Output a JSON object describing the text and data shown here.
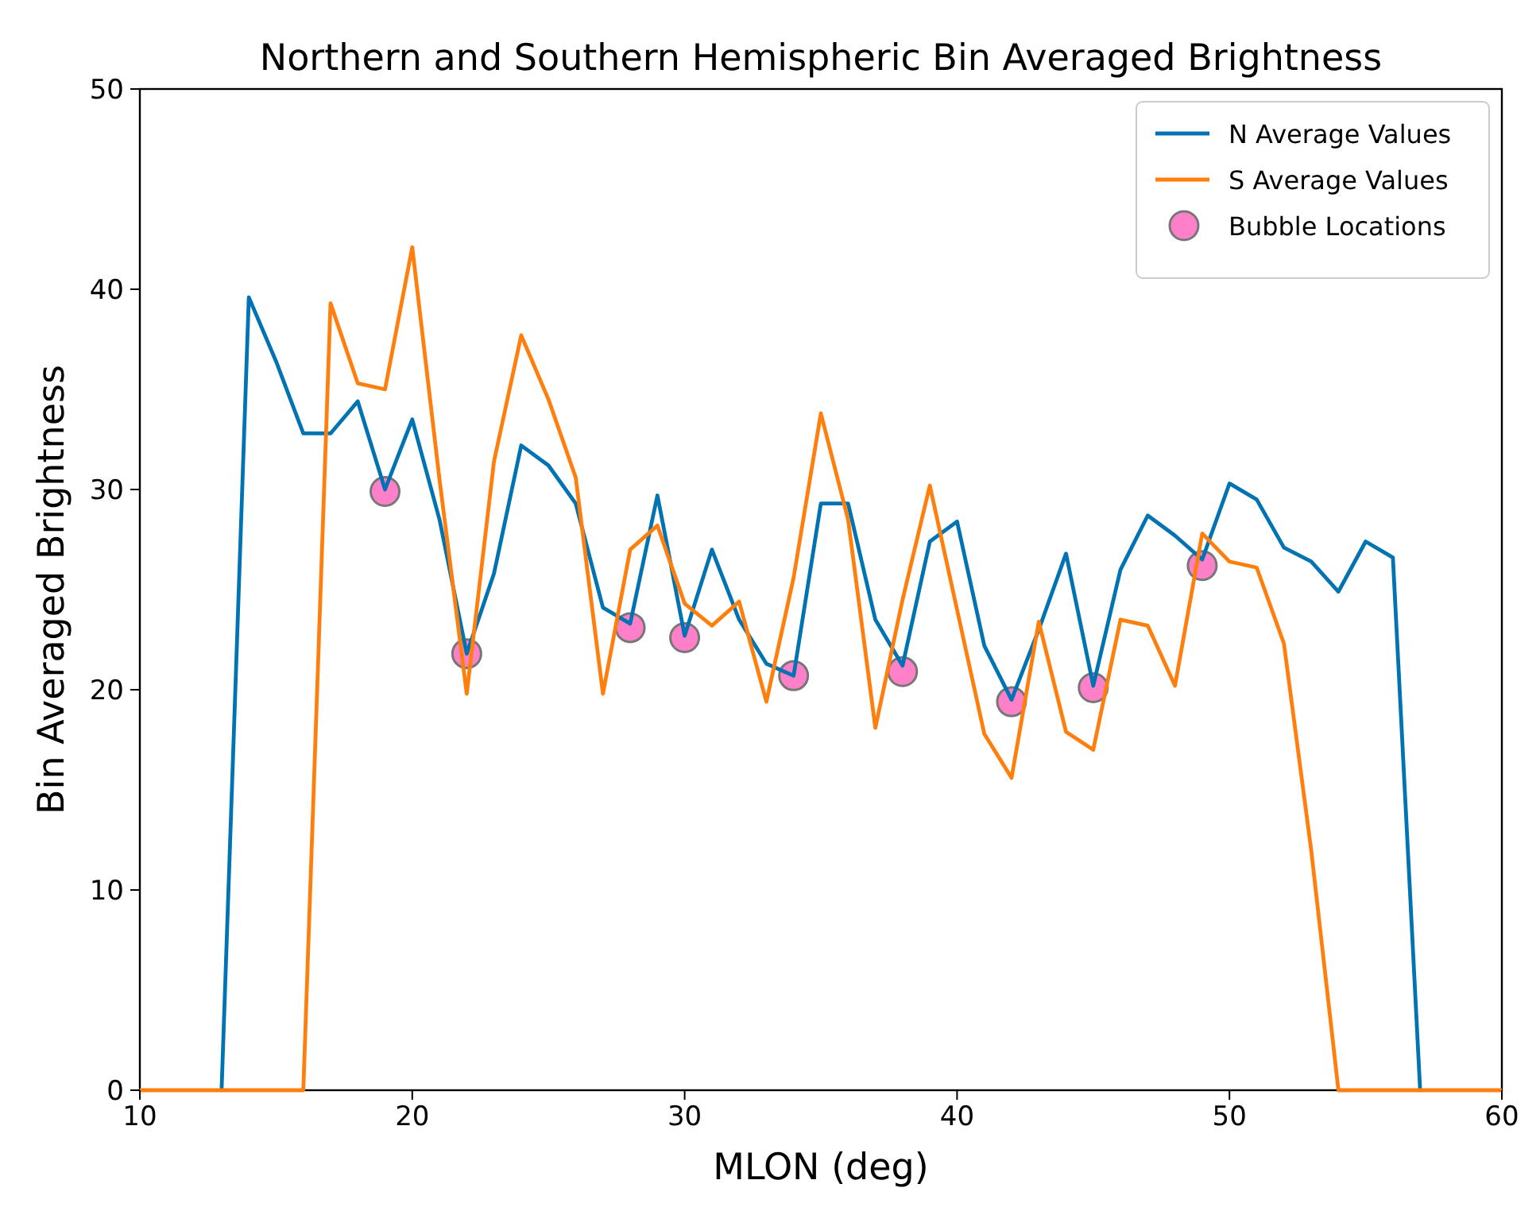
{
  "chart_data": {
    "type": "line",
    "title": "Northern and Southern Hemispheric Bin Averaged Brightness",
    "xlabel": "MLON (deg)",
    "ylabel": "Bin Averaged Brightness",
    "xlim": [
      10,
      60
    ],
    "xticks": [
      10,
      20,
      30,
      40,
      50,
      60
    ],
    "ylim": [
      0,
      50
    ],
    "yticks": [
      0,
      10,
      20,
      30,
      40,
      50
    ],
    "legend": "top right",
    "grid": false,
    "series": [
      {
        "name": "N Average Values",
        "color": "#0173b2",
        "x": [
          13,
          14,
          15,
          16,
          17,
          18,
          19,
          20,
          21,
          22,
          23,
          24,
          25,
          26,
          27,
          28,
          29,
          30,
          31,
          32,
          33,
          34,
          35,
          36,
          37,
          38,
          39,
          40,
          41,
          42,
          43,
          44,
          45,
          46,
          47,
          48,
          49,
          50,
          51,
          52,
          53,
          54,
          55,
          56,
          57
        ],
        "values": [
          0,
          39.6,
          36.4,
          32.8,
          32.8,
          34.4,
          30,
          33.5,
          28.5,
          21.8,
          25.8,
          32.2,
          31.2,
          29.3,
          24.1,
          23.3,
          29.7,
          22.7,
          27,
          23.5,
          21.3,
          20.7,
          29.3,
          29.3,
          23.5,
          21.2,
          27.4,
          28.4,
          22.2,
          19.5,
          23,
          26.8,
          20.2,
          26,
          28.7,
          27.7,
          26.5,
          30.3,
          29.5,
          27.1,
          26.4,
          24.9,
          27.4,
          26.6,
          0
        ]
      },
      {
        "name": "S Average Values",
        "color": "#ff7f0e",
        "x": [
          10,
          11,
          12,
          13,
          14,
          15,
          16,
          17,
          18,
          19,
          20,
          21,
          22,
          23,
          24,
          25,
          26,
          27,
          28,
          29,
          30,
          31,
          32,
          33,
          34,
          35,
          36,
          37,
          38,
          39,
          40,
          41,
          42,
          43,
          44,
          45,
          46,
          47,
          48,
          49,
          50,
          51,
          52,
          53,
          54,
          55,
          56,
          57,
          58,
          59,
          60
        ],
        "values": [
          0,
          0,
          0,
          0,
          0,
          0,
          0,
          39.3,
          35.3,
          35,
          42.1,
          30.5,
          19.8,
          31.4,
          37.7,
          34.5,
          30.6,
          19.8,
          27,
          28.2,
          24.3,
          23.2,
          24.4,
          19.4,
          25.6,
          33.8,
          28.5,
          18.1,
          24.5,
          30.2,
          24,
          17.8,
          15.6,
          23.4,
          17.9,
          17,
          23.5,
          23.2,
          20.2,
          27.8,
          26.4,
          26.1,
          22.3,
          12,
          0,
          0,
          0,
          0,
          0,
          0,
          0
        ]
      },
      {
        "name": "Bubble Locations",
        "type": "scatter",
        "marker": "circle",
        "color": "#ff80c8",
        "x": [
          19,
          22,
          28,
          30,
          34,
          38,
          42,
          45,
          49
        ],
        "values": [
          29.9,
          21.8,
          23.1,
          22.6,
          20.7,
          20.9,
          19.4,
          20.1,
          26.2
        ]
      }
    ]
  }
}
